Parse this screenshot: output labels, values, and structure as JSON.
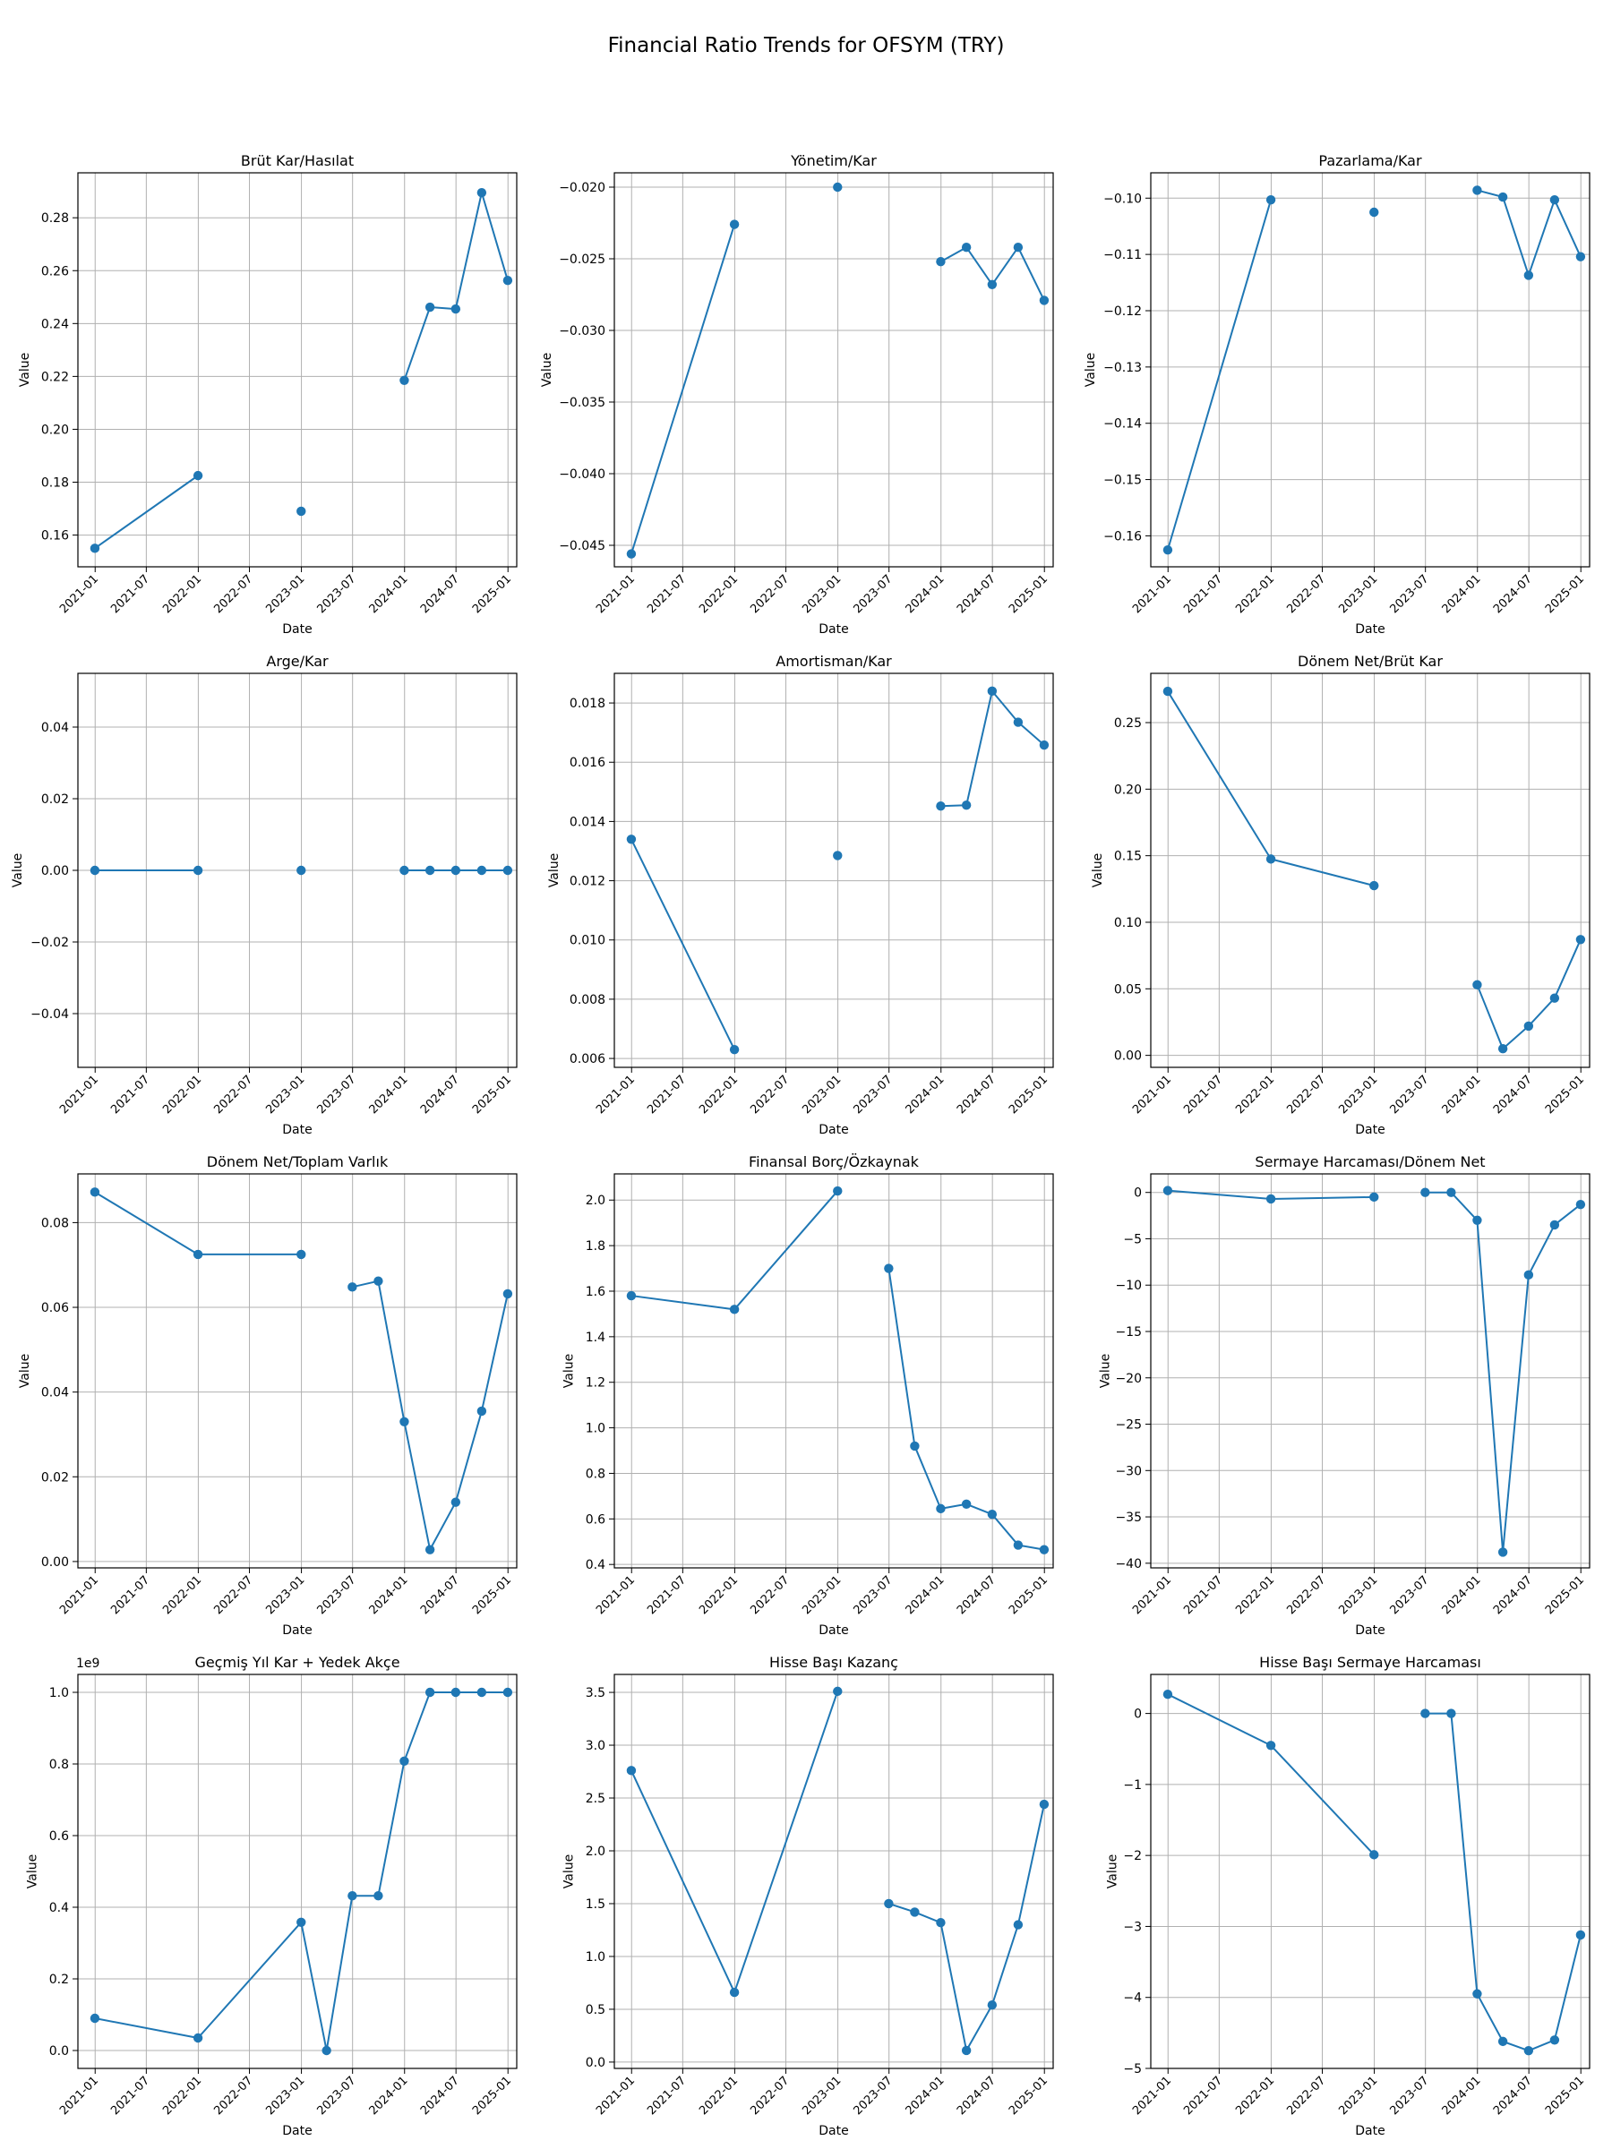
{
  "figure": {
    "title": "Financial Ratio Trends for OFSYM (TRY)"
  },
  "chart_data": [
    {
      "type": "line",
      "title": "Brüt Kar/Hasılat",
      "xlabel": "Date",
      "ylabel": "Value",
      "ylim": [
        0.148,
        0.297
      ],
      "yticks": [
        0.16,
        0.18,
        0.2,
        0.22,
        0.24,
        0.26,
        0.28
      ],
      "ytick_labels": [
        "0.16",
        "0.18",
        "0.20",
        "0.22",
        "0.24",
        "0.26",
        "0.28"
      ],
      "xlim": [
        "2020-11-01",
        "2025-02-01"
      ],
      "xticks": [
        "2021-01-01",
        "2021-07-01",
        "2022-01-01",
        "2022-07-01",
        "2023-01-01",
        "2023-07-01",
        "2024-01-01",
        "2024-07-01",
        "2025-01-01"
      ],
      "xtick_labels": [
        "2021-01",
        "2021-07",
        "2022-01",
        "2022-07",
        "2023-01",
        "2023-07",
        "2024-01",
        "2024-07",
        "2025-01"
      ],
      "grid": true,
      "series": [
        {
          "x": [
            "2020-12-31",
            "2021-12-31",
            "2022-12-31",
            "2023-12-31",
            "2024-03-31",
            "2024-06-30",
            "2024-09-30",
            "2024-12-31"
          ],
          "y": [
            0.155,
            0.1825,
            0.169,
            0.2185,
            0.2462,
            0.2455,
            0.2895,
            0.2563
          ]
        }
      ]
    },
    {
      "type": "line",
      "title": "Yönetim/Kar",
      "xlabel": "Date",
      "ylabel": "Value",
      "ylim": [
        -0.0465,
        -0.019
      ],
      "yticks": [
        -0.045,
        -0.04,
        -0.035,
        -0.03,
        -0.025,
        -0.02
      ],
      "ytick_labels": [
        "−0.045",
        "−0.040",
        "−0.035",
        "−0.030",
        "−0.025",
        "−0.020"
      ],
      "xlim": [
        "2020-11-01",
        "2025-02-01"
      ],
      "xticks": [
        "2021-01-01",
        "2021-07-01",
        "2022-01-01",
        "2022-07-01",
        "2023-01-01",
        "2023-07-01",
        "2024-01-01",
        "2024-07-01",
        "2025-01-01"
      ],
      "xtick_labels": [
        "2021-01",
        "2021-07",
        "2022-01",
        "2022-07",
        "2023-01",
        "2023-07",
        "2024-01",
        "2024-07",
        "2025-01"
      ],
      "grid": true,
      "series": [
        {
          "x": [
            "2020-12-31",
            "2021-12-31",
            "2022-12-31",
            "2023-12-31",
            "2024-03-31",
            "2024-06-30",
            "2024-09-30",
            "2024-12-31"
          ],
          "y": [
            -0.0456,
            -0.0226,
            -0.02,
            -0.0252,
            -0.0242,
            -0.0268,
            -0.0242,
            -0.0279
          ]
        }
      ]
    },
    {
      "type": "line",
      "title": "Pazarlama/Kar",
      "xlabel": "Date",
      "ylabel": "Value",
      "ylim": [
        -0.1655,
        -0.0955
      ],
      "yticks": [
        -0.16,
        -0.15,
        -0.14,
        -0.13,
        -0.12,
        -0.11,
        -0.1
      ],
      "ytick_labels": [
        "−0.16",
        "−0.15",
        "−0.14",
        "−0.13",
        "−0.12",
        "−0.11",
        "−0.10"
      ],
      "xlim": [
        "2020-11-01",
        "2025-02-01"
      ],
      "xticks": [
        "2021-01-01",
        "2021-07-01",
        "2022-01-01",
        "2022-07-01",
        "2023-01-01",
        "2023-07-01",
        "2024-01-01",
        "2024-07-01",
        "2025-01-01"
      ],
      "xtick_labels": [
        "2021-01",
        "2021-07",
        "2022-01",
        "2022-07",
        "2023-01",
        "2023-07",
        "2024-01",
        "2024-07",
        "2025-01"
      ],
      "grid": true,
      "series": [
        {
          "x": [
            "2020-12-31",
            "2021-12-31",
            "2022-12-31",
            "2023-12-31",
            "2024-03-31",
            "2024-06-30",
            "2024-09-30",
            "2024-12-31"
          ],
          "y": [
            -0.1625,
            -0.1003,
            -0.1025,
            -0.0986,
            -0.0998,
            -0.1137,
            -0.1003,
            -0.1104
          ]
        }
      ]
    },
    {
      "type": "line",
      "title": "Arge/Kar",
      "xlabel": "Date",
      "ylabel": "Value",
      "ylim": [
        -0.055,
        0.055
      ],
      "yticks": [
        -0.04,
        -0.02,
        0.0,
        0.02,
        0.04
      ],
      "ytick_labels": [
        "−0.04",
        "−0.02",
        "0.00",
        "0.02",
        "0.04"
      ],
      "xlim": [
        "2020-11-01",
        "2025-02-01"
      ],
      "xticks": [
        "2021-01-01",
        "2021-07-01",
        "2022-01-01",
        "2022-07-01",
        "2023-01-01",
        "2023-07-01",
        "2024-01-01",
        "2024-07-01",
        "2025-01-01"
      ],
      "xtick_labels": [
        "2021-01",
        "2021-07",
        "2022-01",
        "2022-07",
        "2023-01",
        "2023-07",
        "2024-01",
        "2024-07",
        "2025-01"
      ],
      "grid": true,
      "series": [
        {
          "x": [
            "2020-12-31",
            "2021-12-31",
            "2022-12-31",
            "2023-12-31",
            "2024-03-31",
            "2024-06-30",
            "2024-09-30",
            "2024-12-31"
          ],
          "y": [
            0,
            0,
            0,
            0,
            0,
            0,
            0,
            0
          ]
        }
      ]
    },
    {
      "type": "line",
      "title": "Amortisman/Kar",
      "xlabel": "Date",
      "ylabel": "Value",
      "ylim": [
        0.0057,
        0.019
      ],
      "yticks": [
        0.006,
        0.008,
        0.01,
        0.012,
        0.014,
        0.016,
        0.018
      ],
      "ytick_labels": [
        "0.006",
        "0.008",
        "0.010",
        "0.012",
        "0.014",
        "0.016",
        "0.018"
      ],
      "xlim": [
        "2020-11-01",
        "2025-02-01"
      ],
      "xticks": [
        "2021-01-01",
        "2021-07-01",
        "2022-01-01",
        "2022-07-01",
        "2023-01-01",
        "2023-07-01",
        "2024-01-01",
        "2024-07-01",
        "2025-01-01"
      ],
      "xtick_labels": [
        "2021-01",
        "2021-07",
        "2022-01",
        "2022-07",
        "2023-01",
        "2023-07",
        "2024-01",
        "2024-07",
        "2025-01"
      ],
      "grid": true,
      "series": [
        {
          "x": [
            "2020-12-31",
            "2021-12-31",
            "2022-12-31",
            "2023-12-31",
            "2024-03-31",
            "2024-06-30",
            "2024-09-30",
            "2024-12-31"
          ],
          "y": [
            0.0134,
            0.0063,
            0.01285,
            0.01452,
            0.01455,
            0.0184,
            0.01735,
            0.01658
          ]
        }
      ]
    },
    {
      "type": "line",
      "title": "Dönem Net/Brüt Kar",
      "xlabel": "Date",
      "ylabel": "Value",
      "ylim": [
        -0.009,
        0.287
      ],
      "yticks": [
        0.0,
        0.05,
        0.1,
        0.15,
        0.2,
        0.25
      ],
      "ytick_labels": [
        "0.00",
        "0.05",
        "0.10",
        "0.15",
        "0.20",
        "0.25"
      ],
      "xlim": [
        "2020-11-01",
        "2025-02-01"
      ],
      "xticks": [
        "2021-01-01",
        "2021-07-01",
        "2022-01-01",
        "2022-07-01",
        "2023-01-01",
        "2023-07-01",
        "2024-01-01",
        "2024-07-01",
        "2025-01-01"
      ],
      "xtick_labels": [
        "2021-01",
        "2021-07",
        "2022-01",
        "2022-07",
        "2023-01",
        "2023-07",
        "2024-01",
        "2024-07",
        "2025-01"
      ],
      "grid": true,
      "series": [
        {
          "x": [
            "2020-12-31",
            "2021-12-31",
            "2022-12-31",
            "2023-12-31",
            "2024-03-31",
            "2024-06-30",
            "2024-09-30",
            "2024-12-31"
          ],
          "y": [
            0.2735,
            0.1475,
            0.1275,
            0.053,
            0.005,
            0.022,
            0.043,
            0.087
          ]
        }
      ]
    },
    {
      "type": "line",
      "title": "Dönem Net/Toplam Varlık",
      "xlabel": "Date",
      "ylabel": "Value",
      "ylim": [
        -0.0015,
        0.0915
      ],
      "yticks": [
        0.0,
        0.02,
        0.04,
        0.06,
        0.08
      ],
      "ytick_labels": [
        "0.00",
        "0.02",
        "0.04",
        "0.06",
        "0.08"
      ],
      "xlim": [
        "2020-11-01",
        "2025-02-01"
      ],
      "xticks": [
        "2021-01-01",
        "2021-07-01",
        "2022-01-01",
        "2022-07-01",
        "2023-01-01",
        "2023-07-01",
        "2024-01-01",
        "2024-07-01",
        "2025-01-01"
      ],
      "xtick_labels": [
        "2021-01",
        "2021-07",
        "2022-01",
        "2022-07",
        "2023-01",
        "2023-07",
        "2024-01",
        "2024-07",
        "2025-01"
      ],
      "grid": true,
      "series": [
        {
          "x": [
            "2020-12-31",
            "2021-12-31",
            "2022-12-31",
            "2023-06-30",
            "2023-09-30",
            "2023-12-31",
            "2024-03-31",
            "2024-06-30",
            "2024-09-30",
            "2024-12-31"
          ],
          "y": [
            0.0872,
            0.0725,
            0.0725,
            0.0648,
            0.0662,
            0.033,
            0.0028,
            0.014,
            0.0355,
            0.0632
          ]
        }
      ]
    },
    {
      "type": "line",
      "title": "Finansal Borç/Özkaynak",
      "xlabel": "Date",
      "ylabel": "Value",
      "ylim": [
        0.385,
        2.115
      ],
      "yticks": [
        0.4,
        0.6,
        0.8,
        1.0,
        1.2,
        1.4,
        1.6,
        1.8,
        2.0
      ],
      "ytick_labels": [
        "0.4",
        "0.6",
        "0.8",
        "1.0",
        "1.2",
        "1.4",
        "1.6",
        "1.8",
        "2.0"
      ],
      "xlim": [
        "2020-11-01",
        "2025-02-01"
      ],
      "xticks": [
        "2021-01-01",
        "2021-07-01",
        "2022-01-01",
        "2022-07-01",
        "2023-01-01",
        "2023-07-01",
        "2024-01-01",
        "2024-07-01",
        "2025-01-01"
      ],
      "xtick_labels": [
        "2021-01",
        "2021-07",
        "2022-01",
        "2022-07",
        "2023-01",
        "2023-07",
        "2024-01",
        "2024-07",
        "2025-01"
      ],
      "grid": true,
      "series": [
        {
          "x": [
            "2020-12-31",
            "2021-12-31",
            "2022-12-31",
            "2023-06-30",
            "2023-09-30",
            "2023-12-31",
            "2024-03-31",
            "2024-06-30",
            "2024-09-30",
            "2024-12-31"
          ],
          "y": [
            1.58,
            1.52,
            2.04,
            1.7,
            0.92,
            0.645,
            0.665,
            0.62,
            0.485,
            0.465
          ]
        }
      ]
    },
    {
      "type": "line",
      "title": "Sermaye Harcaması/Dönem Net",
      "xlabel": "Date",
      "ylabel": "Value",
      "ylim": [
        -40.5,
        2.0
      ],
      "yticks": [
        -40,
        -35,
        -30,
        -25,
        -20,
        -15,
        -10,
        -5,
        0
      ],
      "ytick_labels": [
        "−40",
        "−35",
        "−30",
        "−25",
        "−20",
        "−15",
        "−10",
        "−5",
        "0"
      ],
      "xlim": [
        "2020-11-01",
        "2025-02-01"
      ],
      "xticks": [
        "2021-01-01",
        "2021-07-01",
        "2022-01-01",
        "2022-07-01",
        "2023-01-01",
        "2023-07-01",
        "2024-01-01",
        "2024-07-01",
        "2025-01-01"
      ],
      "xtick_labels": [
        "2021-01",
        "2021-07",
        "2022-01",
        "2022-07",
        "2023-01",
        "2023-07",
        "2024-01",
        "2024-07",
        "2025-01"
      ],
      "grid": true,
      "series": [
        {
          "x": [
            "2020-12-31",
            "2021-12-31",
            "2022-12-31",
            "2023-06-30",
            "2023-09-30",
            "2023-12-31",
            "2024-03-31",
            "2024-06-30",
            "2024-09-30",
            "2024-12-31"
          ],
          "y": [
            0.2,
            -0.7,
            -0.5,
            0.0,
            0.0,
            -3.0,
            -38.8,
            -8.9,
            -3.5,
            -1.3
          ]
        }
      ]
    },
    {
      "type": "line",
      "title": "Geçmiş Yıl Kar + Yedek Akçe",
      "xlabel": "Date",
      "ylabel": "Value",
      "ylim": [
        -0.05,
        1.05
      ],
      "y_scale_label": "1e9",
      "yticks": [
        0.0,
        0.2,
        0.4,
        0.6,
        0.8,
        1.0
      ],
      "ytick_labels": [
        "0.0",
        "0.2",
        "0.4",
        "0.6",
        "0.8",
        "1.0"
      ],
      "xlim": [
        "2020-11-01",
        "2025-02-01"
      ],
      "xticks": [
        "2021-01-01",
        "2021-07-01",
        "2022-01-01",
        "2022-07-01",
        "2023-01-01",
        "2023-07-01",
        "2024-01-01",
        "2024-07-01",
        "2025-01-01"
      ],
      "xtick_labels": [
        "2021-01",
        "2021-07",
        "2022-01",
        "2022-07",
        "2023-01",
        "2023-07",
        "2024-01",
        "2024-07",
        "2025-01"
      ],
      "grid": true,
      "series": [
        {
          "x": [
            "2020-12-31",
            "2021-12-31",
            "2022-12-31",
            "2023-03-31",
            "2023-06-30",
            "2023-09-30",
            "2023-12-31",
            "2024-03-31",
            "2024-06-30",
            "2024-09-30",
            "2024-12-31"
          ],
          "y": [
            0.09,
            0.035,
            0.358,
            0.0,
            0.432,
            0.432,
            0.808,
            1.0,
            1.0,
            1.0,
            1.0
          ]
        }
      ]
    },
    {
      "type": "line",
      "title": "Hisse Başı Kazanç",
      "xlabel": "Date",
      "ylabel": "Value",
      "ylim": [
        -0.06,
        3.67
      ],
      "yticks": [
        0.0,
        0.5,
        1.0,
        1.5,
        2.0,
        2.5,
        3.0,
        3.5
      ],
      "ytick_labels": [
        "0.0",
        "0.5",
        "1.0",
        "1.5",
        "2.0",
        "2.5",
        "3.0",
        "3.5"
      ],
      "xlim": [
        "2020-11-01",
        "2025-02-01"
      ],
      "xticks": [
        "2021-01-01",
        "2021-07-01",
        "2022-01-01",
        "2022-07-01",
        "2023-01-01",
        "2023-07-01",
        "2024-01-01",
        "2024-07-01",
        "2025-01-01"
      ],
      "xtick_labels": [
        "2021-01",
        "2021-07",
        "2022-01",
        "2022-07",
        "2023-01",
        "2023-07",
        "2024-01",
        "2024-07",
        "2025-01"
      ],
      "grid": true,
      "series": [
        {
          "x": [
            "2020-12-31",
            "2021-12-31",
            "2022-12-31",
            "2023-06-30",
            "2023-09-30",
            "2023-12-31",
            "2024-03-31",
            "2024-06-30",
            "2024-09-30",
            "2024-12-31"
          ],
          "y": [
            2.76,
            0.66,
            3.51,
            1.5,
            1.42,
            1.32,
            0.11,
            0.54,
            1.3,
            2.44
          ]
        }
      ]
    },
    {
      "type": "line",
      "title": "Hisse Başı Sermaye Harcaması",
      "xlabel": "Date",
      "ylabel": "Value",
      "ylim": [
        -5.0,
        0.55
      ],
      "yticks": [
        -5,
        -4,
        -3,
        -2,
        -1,
        0
      ],
      "ytick_labels": [
        "−5",
        "−4",
        "−3",
        "−2",
        "−1",
        "0"
      ],
      "xlim": [
        "2020-11-01",
        "2025-02-01"
      ],
      "xticks": [
        "2021-01-01",
        "2021-07-01",
        "2022-01-01",
        "2022-07-01",
        "2023-01-01",
        "2023-07-01",
        "2024-01-01",
        "2024-07-01",
        "2025-01-01"
      ],
      "xtick_labels": [
        "2021-01",
        "2021-07",
        "2022-01",
        "2022-07",
        "2023-01",
        "2023-07",
        "2024-01",
        "2024-07",
        "2025-01"
      ],
      "grid": true,
      "series": [
        {
          "x": [
            "2020-12-31",
            "2021-12-31",
            "2022-12-31",
            "2023-06-30",
            "2023-09-30",
            "2023-12-31",
            "2024-03-31",
            "2024-06-30",
            "2024-09-30",
            "2024-12-31"
          ],
          "y": [
            0.27,
            -0.45,
            -1.99,
            0.0,
            0.0,
            -3.95,
            -4.62,
            -4.75,
            -4.6,
            -3.12
          ]
        }
      ]
    }
  ]
}
